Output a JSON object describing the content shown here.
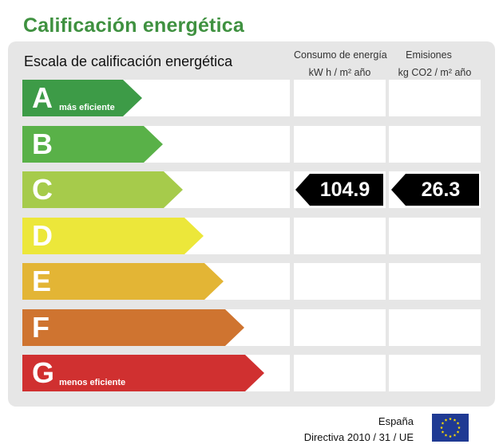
{
  "header": {
    "title": "Calificación energética"
  },
  "table": {
    "scale_label": "Escala de calificación energética",
    "col_consumo_line1": "Consumo de energía",
    "col_consumo_line2": "kW h / m² año",
    "col_emisiones_line1": "Emisiones",
    "col_emisiones_line2": "kg CO2 / m² año"
  },
  "ratings": [
    {
      "letter": "A",
      "sublabel": "más eficiente",
      "color": "#3d9b47"
    },
    {
      "letter": "B",
      "sublabel": "",
      "color": "#59b148"
    },
    {
      "letter": "C",
      "sublabel": "",
      "color": "#a6cb4b"
    },
    {
      "letter": "D",
      "sublabel": "",
      "color": "#ece73a"
    },
    {
      "letter": "E",
      "sublabel": "",
      "color": "#e3b535"
    },
    {
      "letter": "F",
      "sublabel": "",
      "color": "#cf7430"
    },
    {
      "letter": "G",
      "sublabel": "menos eficiente",
      "color": "#d03030"
    }
  ],
  "result": {
    "rating": "C",
    "consumo": "104.9",
    "emisiones": "26.3"
  },
  "footer": {
    "country": "España",
    "directive": "Directiva 2010 / 31 / UE",
    "flag_icon": "eu-flag-icon",
    "flag_color": "#1f3a93",
    "star_color": "#ffdd00"
  }
}
